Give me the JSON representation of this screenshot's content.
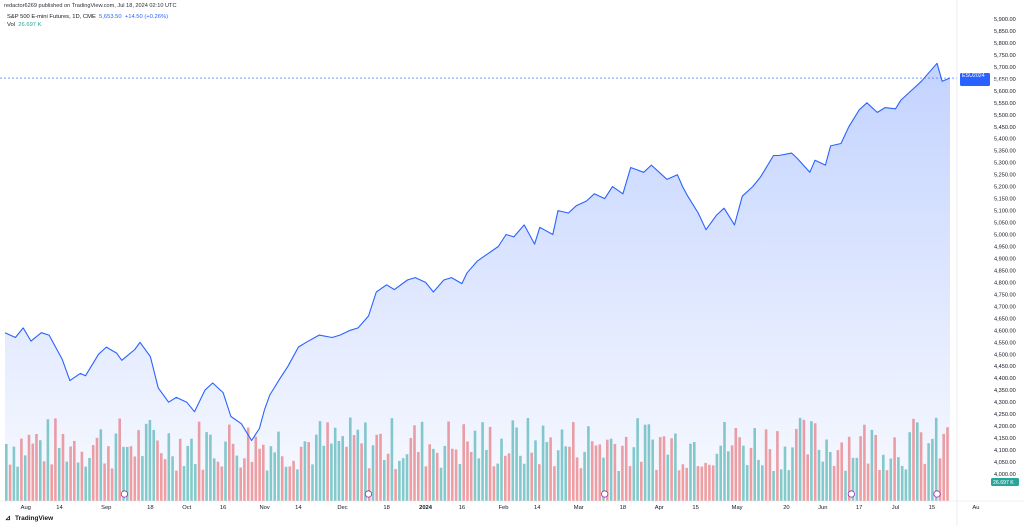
{
  "header": {
    "published": "redactor6269 published on TradingView.com, Jul 18, 2024 02:10 UTC",
    "symbol_title": "S&P 500 E-mini Futures, 1D, CME",
    "last_price": "5,653.50",
    "change": "+14.50 (+0.26%)",
    "vol_label": "Vol",
    "vol_value": "26.697 K"
  },
  "price_tag": {
    "symbol": "ESU2024",
    "price": "5,653.50",
    "countdown": "13:49:50"
  },
  "vol_tag": "26.697 K",
  "logo_text": "TradingView",
  "colors": {
    "line": "#2962ff",
    "up_vol": "#26a69a",
    "down_vol": "#ef5350",
    "price_tag_bg": "#2962ff",
    "vol_tag_bg": "#26a69a"
  },
  "chart_data": {
    "type": "area",
    "title": "S&P 500 E-mini Futures, 1D, CME",
    "ylim": [
      3975,
      5925
    ],
    "y_ticks": [
      "5,900.00",
      "5,850.00",
      "5,800.00",
      "5,750.00",
      "5,700.00",
      "5,650.00",
      "5,600.00",
      "5,550.00",
      "5,500.00",
      "5,450.00",
      "5,400.00",
      "5,350.00",
      "5,300.00",
      "5,250.00",
      "5,200.00",
      "5,150.00",
      "5,100.00",
      "5,050.00",
      "5,000.00",
      "4,950.00",
      "4,900.00",
      "4,850.00",
      "4,800.00",
      "4,750.00",
      "4,700.00",
      "4,650.00",
      "4,600.00",
      "4,550.00",
      "4,500.00",
      "4,450.00",
      "4,400.00",
      "4,350.00",
      "4,300.00",
      "4,250.00",
      "4,200.00",
      "4,150.00",
      "4,100.00",
      "4,050.00",
      "4,000.00"
    ],
    "x_ticks": [
      {
        "label": "Aug",
        "date": "2023-08-01"
      },
      {
        "label": "14",
        "date": "2023-08-14"
      },
      {
        "label": "Sep",
        "date": "2023-09-01"
      },
      {
        "label": "18",
        "date": "2023-09-18"
      },
      {
        "label": "Oct",
        "date": "2023-10-02"
      },
      {
        "label": "16",
        "date": "2023-10-16"
      },
      {
        "label": "Nov",
        "date": "2023-11-01"
      },
      {
        "label": "14",
        "date": "2023-11-14"
      },
      {
        "label": "Dec",
        "date": "2023-12-01"
      },
      {
        "label": "18",
        "date": "2023-12-18"
      },
      {
        "label": "2024",
        "date": "2024-01-02",
        "bold": true
      },
      {
        "label": "16",
        "date": "2024-01-16"
      },
      {
        "label": "Feb",
        "date": "2024-02-01"
      },
      {
        "label": "14",
        "date": "2024-02-14"
      },
      {
        "label": "Mar",
        "date": "2024-03-01"
      },
      {
        "label": "18",
        "date": "2024-03-18"
      },
      {
        "label": "Apr",
        "date": "2024-04-01"
      },
      {
        "label": "15",
        "date": "2024-04-15"
      },
      {
        "label": "May",
        "date": "2024-05-01"
      },
      {
        "label": "20",
        "date": "2024-05-20"
      },
      {
        "label": "Jun",
        "date": "2024-06-03"
      },
      {
        "label": "17",
        "date": "2024-06-17"
      },
      {
        "label": "Jul",
        "date": "2024-07-01"
      },
      {
        "label": "15",
        "date": "2024-07-15"
      },
      {
        "label": "Au",
        "date": "2024-08-01"
      }
    ],
    "series": [
      {
        "type": "line",
        "points": [
          [
            "2023-07-24",
            4590
          ],
          [
            "2023-07-28",
            4570
          ],
          [
            "2023-07-31",
            4610
          ],
          [
            "2023-08-03",
            4555
          ],
          [
            "2023-08-07",
            4590
          ],
          [
            "2023-08-10",
            4580
          ],
          [
            "2023-08-15",
            4480
          ],
          [
            "2023-08-18",
            4390
          ],
          [
            "2023-08-22",
            4420
          ],
          [
            "2023-08-24",
            4410
          ],
          [
            "2023-08-29",
            4500
          ],
          [
            "2023-09-01",
            4530
          ],
          [
            "2023-09-05",
            4505
          ],
          [
            "2023-09-07",
            4475
          ],
          [
            "2023-09-12",
            4520
          ],
          [
            "2023-09-14",
            4550
          ],
          [
            "2023-09-18",
            4490
          ],
          [
            "2023-09-21",
            4360
          ],
          [
            "2023-09-25",
            4300
          ],
          [
            "2023-09-28",
            4320
          ],
          [
            "2023-10-02",
            4300
          ],
          [
            "2023-10-05",
            4260
          ],
          [
            "2023-10-09",
            4350
          ],
          [
            "2023-10-12",
            4380
          ],
          [
            "2023-10-16",
            4340
          ],
          [
            "2023-10-19",
            4240
          ],
          [
            "2023-10-23",
            4210
          ],
          [
            "2023-10-27",
            4140
          ],
          [
            "2023-10-30",
            4190
          ],
          [
            "2023-11-01",
            4270
          ],
          [
            "2023-11-03",
            4330
          ],
          [
            "2023-11-07",
            4400
          ],
          [
            "2023-11-10",
            4450
          ],
          [
            "2023-11-14",
            4530
          ],
          [
            "2023-11-17",
            4550
          ],
          [
            "2023-11-22",
            4580
          ],
          [
            "2023-11-27",
            4570
          ],
          [
            "2023-11-30",
            4580
          ],
          [
            "2023-12-04",
            4600
          ],
          [
            "2023-12-07",
            4610
          ],
          [
            "2023-12-11",
            4660
          ],
          [
            "2023-12-14",
            4760
          ],
          [
            "2023-12-18",
            4790
          ],
          [
            "2023-12-21",
            4770
          ],
          [
            "2023-12-26",
            4810
          ],
          [
            "2023-12-29",
            4820
          ],
          [
            "2024-01-02",
            4800
          ],
          [
            "2024-01-05",
            4760
          ],
          [
            "2024-01-09",
            4810
          ],
          [
            "2024-01-12",
            4820
          ],
          [
            "2024-01-16",
            4795
          ],
          [
            "2024-01-18",
            4840
          ],
          [
            "2024-01-22",
            4890
          ],
          [
            "2024-01-26",
            4920
          ],
          [
            "2024-01-30",
            4950
          ],
          [
            "2024-02-02",
            5000
          ],
          [
            "2024-02-05",
            4990
          ],
          [
            "2024-02-09",
            5040
          ],
          [
            "2024-02-13",
            4960
          ],
          [
            "2024-02-15",
            5030
          ],
          [
            "2024-02-20",
            5000
          ],
          [
            "2024-02-22",
            5100
          ],
          [
            "2024-02-26",
            5090
          ],
          [
            "2024-02-29",
            5120
          ],
          [
            "2024-03-04",
            5140
          ],
          [
            "2024-03-07",
            5170
          ],
          [
            "2024-03-11",
            5150
          ],
          [
            "2024-03-14",
            5200
          ],
          [
            "2024-03-18",
            5170
          ],
          [
            "2024-03-21",
            5280
          ],
          [
            "2024-03-26",
            5260
          ],
          [
            "2024-03-29",
            5290
          ],
          [
            "2024-04-02",
            5250
          ],
          [
            "2024-04-04",
            5230
          ],
          [
            "2024-04-08",
            5250
          ],
          [
            "2024-04-10",
            5200
          ],
          [
            "2024-04-12",
            5160
          ],
          [
            "2024-04-16",
            5090
          ],
          [
            "2024-04-19",
            5020
          ],
          [
            "2024-04-23",
            5080
          ],
          [
            "2024-04-26",
            5110
          ],
          [
            "2024-04-30",
            5040
          ],
          [
            "2024-05-03",
            5160
          ],
          [
            "2024-05-07",
            5200
          ],
          [
            "2024-05-10",
            5240
          ],
          [
            "2024-05-15",
            5330
          ],
          [
            "2024-05-17",
            5330
          ],
          [
            "2024-05-22",
            5340
          ],
          [
            "2024-05-24",
            5320
          ],
          [
            "2024-05-29",
            5260
          ],
          [
            "2024-05-31",
            5310
          ],
          [
            "2024-06-04",
            5290
          ],
          [
            "2024-06-06",
            5370
          ],
          [
            "2024-06-10",
            5380
          ],
          [
            "2024-06-13",
            5450
          ],
          [
            "2024-06-17",
            5520
          ],
          [
            "2024-06-20",
            5550
          ],
          [
            "2024-06-24",
            5510
          ],
          [
            "2024-06-27",
            5530
          ],
          [
            "2024-07-01",
            5525
          ],
          [
            "2024-07-03",
            5560
          ],
          [
            "2024-07-08",
            5610
          ],
          [
            "2024-07-11",
            5640
          ],
          [
            "2024-07-15",
            5690
          ],
          [
            "2024-07-17",
            5715
          ],
          [
            "2024-07-19",
            5640
          ],
          [
            "2024-07-22",
            5653.5
          ]
        ]
      }
    ]
  }
}
